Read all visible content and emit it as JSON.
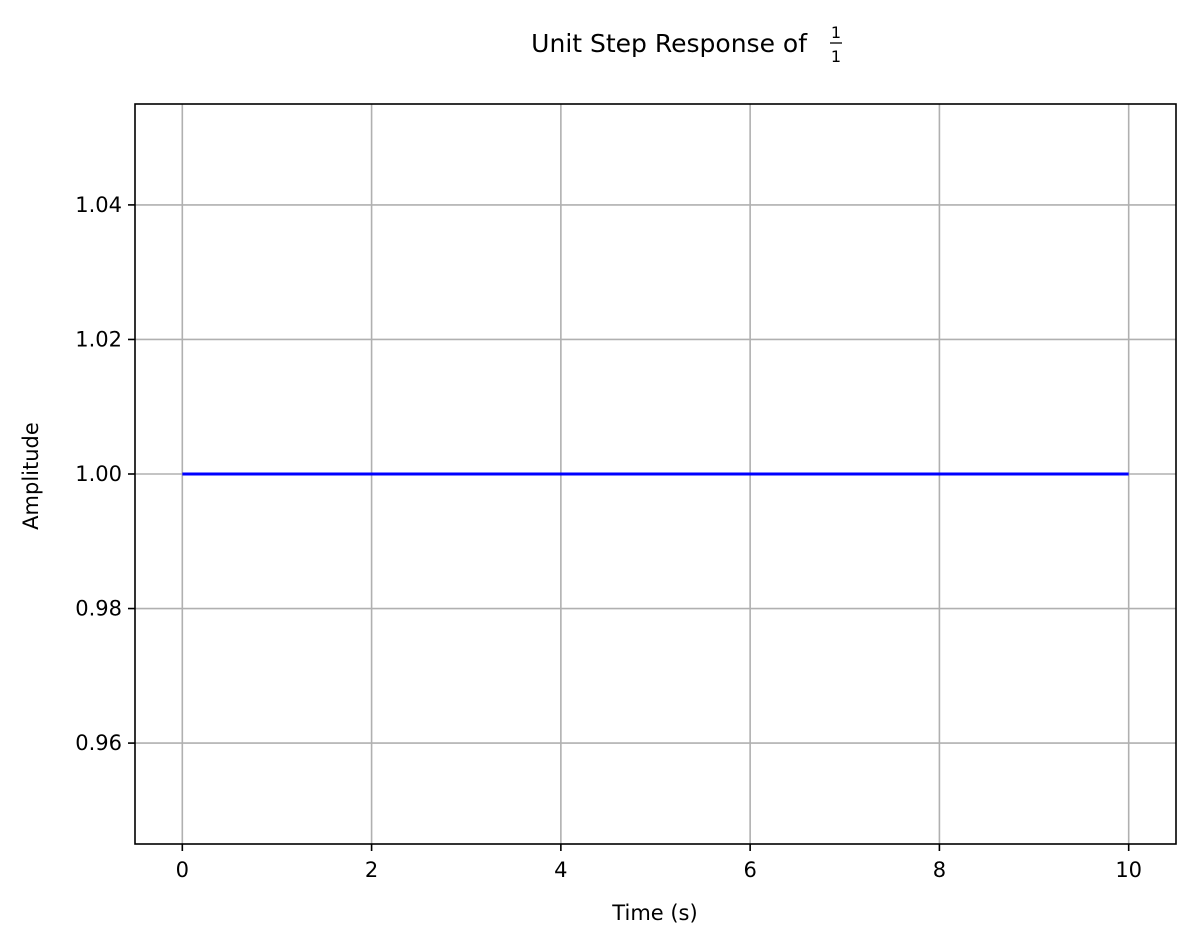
{
  "chart_data": {
    "type": "line",
    "title": "Unit Step Response of",
    "title_fraction": {
      "numerator": "1",
      "denominator": "1"
    },
    "xlabel": "Time (s)",
    "ylabel": "Amplitude",
    "xlim": [
      -0.5,
      10.5
    ],
    "ylim": [
      0.945,
      1.055
    ],
    "x_ticks": [
      0,
      2,
      4,
      6,
      8,
      10
    ],
    "y_ticks": [
      0.96,
      0.98,
      1.0,
      1.02,
      1.04
    ],
    "x_tick_labels": [
      "0",
      "2",
      "4",
      "6",
      "8",
      "10"
    ],
    "y_tick_labels": [
      "0.96",
      "0.98",
      "1.00",
      "1.02",
      "1.04"
    ],
    "grid": true,
    "series": [
      {
        "color": "#0000ff",
        "x": [
          0,
          10
        ],
        "y": [
          1.0,
          1.0
        ]
      }
    ]
  },
  "colors": {
    "grid": "#b0b0b0",
    "axes": "#000000",
    "line": "#0000ff"
  }
}
